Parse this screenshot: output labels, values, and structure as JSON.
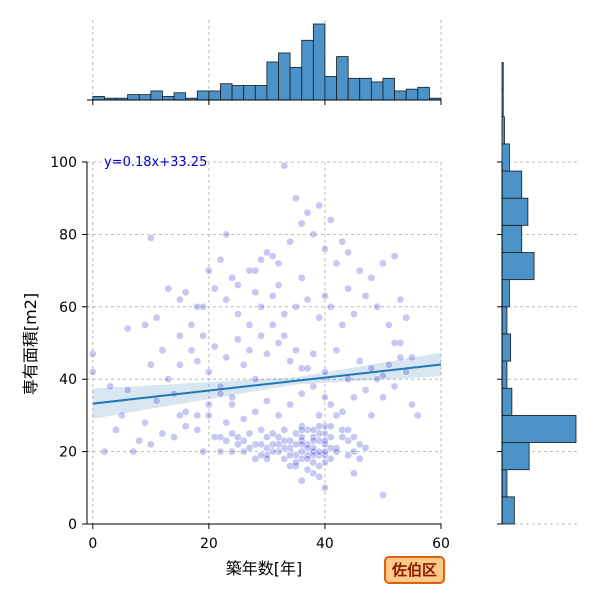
{
  "chart_data": {
    "type": "scatter",
    "title": "",
    "xlabel": "築年数[年]",
    "ylabel": "専有面積[m2]",
    "xlim": [
      -1,
      60
    ],
    "ylim": [
      0,
      100
    ],
    "x_ticks": [
      0,
      20,
      40,
      60
    ],
    "y_ticks": [
      0,
      20,
      40,
      60,
      80,
      100
    ],
    "grid": true,
    "regression": {
      "slope": 0.18,
      "intercept": 33.25,
      "label": "y=0.18x+33.25",
      "color": "#1f77b4"
    },
    "point_color": "#0000cc",
    "hist_color": "#4b93c8",
    "top_histogram": {
      "bin_start": 0,
      "bin_width": 2,
      "counts": [
        2,
        1,
        1,
        3,
        3,
        5,
        2,
        4,
        1,
        5,
        5,
        9,
        8,
        8,
        8,
        21,
        26,
        18,
        33,
        42,
        13,
        24,
        12,
        12,
        10,
        12,
        5,
        6,
        7,
        1,
        0
      ]
    },
    "right_histogram": {
      "bin_start": 0,
      "bin_width": 7.5,
      "counts": [
        10,
        4,
        22,
        60,
        8,
        4,
        7,
        4,
        6,
        26,
        16,
        21,
        16,
        6,
        2,
        1,
        1,
        0
      ]
    },
    "points": [
      [
        38,
        20
      ],
      [
        36,
        18
      ],
      [
        40,
        22
      ],
      [
        35,
        25
      ],
      [
        37,
        15
      ],
      [
        39,
        19
      ],
      [
        34,
        21
      ],
      [
        41,
        18
      ],
      [
        38,
        24
      ],
      [
        33,
        23
      ],
      [
        36,
        27
      ],
      [
        39,
        16
      ],
      [
        37,
        22
      ],
      [
        40,
        25
      ],
      [
        35,
        19
      ],
      [
        42,
        21
      ],
      [
        32,
        20
      ],
      [
        38,
        17
      ],
      [
        36,
        23
      ],
      [
        40,
        19
      ],
      [
        34,
        16
      ],
      [
        37,
        26
      ],
      [
        39,
        23
      ],
      [
        41,
        24
      ],
      [
        35,
        22
      ],
      [
        38,
        21
      ],
      [
        36,
        20
      ],
      [
        33,
        18
      ],
      [
        40,
        17
      ],
      [
        37,
        19
      ],
      [
        30,
        24
      ],
      [
        31,
        20
      ],
      [
        29,
        26
      ],
      [
        32,
        22
      ],
      [
        28,
        18
      ],
      [
        27,
        25
      ],
      [
        30,
        21
      ],
      [
        26,
        20
      ],
      [
        45,
        20
      ],
      [
        44,
        23
      ],
      [
        46,
        18
      ],
      [
        43,
        26
      ],
      [
        47,
        21
      ],
      [
        38,
        14
      ],
      [
        39,
        13
      ],
      [
        36,
        12
      ],
      [
        25,
        22
      ],
      [
        24,
        25
      ],
      [
        22,
        20
      ],
      [
        23,
        28
      ],
      [
        21,
        24
      ],
      [
        20,
        30
      ],
      [
        19,
        20
      ],
      [
        18,
        26
      ],
      [
        15,
        30
      ],
      [
        12,
        25
      ],
      [
        10,
        22
      ],
      [
        9,
        28
      ],
      [
        8,
        23
      ],
      [
        11,
        34
      ],
      [
        14,
        36
      ],
      [
        16,
        31
      ],
      [
        13,
        40
      ],
      [
        10,
        44
      ],
      [
        12,
        48
      ],
      [
        15,
        52
      ],
      [
        18,
        45
      ],
      [
        20,
        42
      ],
      [
        22,
        38
      ],
      [
        24,
        35
      ],
      [
        26,
        44
      ],
      [
        28,
        40
      ],
      [
        30,
        47
      ],
      [
        32,
        50
      ],
      [
        34,
        45
      ],
      [
        36,
        43
      ],
      [
        38,
        47
      ],
      [
        40,
        42
      ],
      [
        42,
        48
      ],
      [
        44,
        40
      ],
      [
        46,
        45
      ],
      [
        48,
        43
      ],
      [
        50,
        41
      ],
      [
        52,
        38
      ],
      [
        54,
        42
      ],
      [
        55,
        46
      ],
      [
        53,
        50
      ],
      [
        51,
        55
      ],
      [
        49,
        60
      ],
      [
        47,
        63
      ],
      [
        45,
        58
      ],
      [
        43,
        55
      ],
      [
        41,
        60
      ],
      [
        39,
        57
      ],
      [
        37,
        62
      ],
      [
        35,
        60
      ],
      [
        33,
        58
      ],
      [
        31,
        63
      ],
      [
        29,
        60
      ],
      [
        27,
        55
      ],
      [
        25,
        58
      ],
      [
        23,
        62
      ],
      [
        21,
        65
      ],
      [
        19,
        60
      ],
      [
        17,
        55
      ],
      [
        15,
        62
      ],
      [
        13,
        65
      ],
      [
        11,
        57
      ],
      [
        9,
        55
      ],
      [
        6,
        54
      ],
      [
        0,
        47
      ],
      [
        0,
        42
      ],
      [
        3,
        38
      ],
      [
        6,
        37
      ],
      [
        5,
        30
      ],
      [
        2,
        20
      ],
      [
        7,
        20
      ],
      [
        4,
        26
      ],
      [
        10,
        79
      ],
      [
        23,
        80
      ],
      [
        28,
        70
      ],
      [
        30,
        75
      ],
      [
        32,
        72
      ],
      [
        34,
        78
      ],
      [
        36,
        83
      ],
      [
        38,
        80
      ],
      [
        40,
        76
      ],
      [
        42,
        72
      ],
      [
        44,
        75
      ],
      [
        46,
        70
      ],
      [
        48,
        68
      ],
      [
        50,
        72
      ],
      [
        52,
        74
      ],
      [
        53,
        62
      ],
      [
        54,
        57
      ],
      [
        44,
        65
      ],
      [
        40,
        63
      ],
      [
        36,
        68
      ],
      [
        32,
        66
      ],
      [
        28,
        64
      ],
      [
        24,
        68
      ],
      [
        22,
        73
      ],
      [
        20,
        70
      ],
      [
        18,
        60
      ],
      [
        16,
        64
      ],
      [
        33,
        99
      ],
      [
        35,
        90
      ],
      [
        37,
        86
      ],
      [
        39,
        88
      ],
      [
        41,
        84
      ],
      [
        43,
        78
      ],
      [
        31,
        74
      ],
      [
        29,
        73
      ],
      [
        27,
        70
      ],
      [
        25,
        66
      ],
      [
        52,
        50
      ],
      [
        50,
        35
      ],
      [
        48,
        30
      ],
      [
        56,
        30
      ],
      [
        55,
        33
      ],
      [
        50,
        8
      ],
      [
        45,
        14
      ],
      [
        40,
        10
      ],
      [
        35,
        16
      ],
      [
        30,
        18
      ],
      [
        42,
        30
      ],
      [
        40,
        35
      ],
      [
        38,
        38
      ],
      [
        36,
        36
      ],
      [
        34,
        33
      ],
      [
        32,
        30
      ],
      [
        30,
        34
      ],
      [
        28,
        31
      ],
      [
        26,
        29
      ],
      [
        24,
        33
      ],
      [
        22,
        36
      ],
      [
        20,
        33
      ],
      [
        18,
        30
      ],
      [
        16,
        27
      ],
      [
        14,
        24
      ],
      [
        39,
        30
      ],
      [
        41,
        33
      ],
      [
        43,
        31
      ],
      [
        45,
        35
      ],
      [
        47,
        37
      ],
      [
        49,
        40
      ],
      [
        51,
        44
      ],
      [
        53,
        46
      ],
      [
        37,
        43
      ],
      [
        35,
        48
      ],
      [
        33,
        52
      ],
      [
        31,
        55
      ],
      [
        29,
        52
      ],
      [
        27,
        48
      ],
      [
        25,
        51
      ],
      [
        23,
        46
      ],
      [
        21,
        49
      ],
      [
        19,
        52
      ],
      [
        17,
        48
      ],
      [
        15,
        44
      ],
      [
        39,
        20
      ],
      [
        37,
        21
      ],
      [
        38,
        23
      ],
      [
        40,
        20
      ],
      [
        36,
        24
      ],
      [
        34,
        19
      ],
      [
        39,
        25
      ],
      [
        41,
        21
      ],
      [
        35,
        17
      ],
      [
        33,
        21
      ],
      [
        37,
        18
      ],
      [
        38,
        19
      ],
      [
        40,
        23
      ],
      [
        36,
        22
      ],
      [
        42,
        20
      ],
      [
        34,
        23
      ],
      [
        31,
        22
      ],
      [
        30,
        19
      ],
      [
        29,
        22
      ],
      [
        43,
        24
      ],
      [
        38,
        26
      ],
      [
        36,
        26
      ],
      [
        40,
        27
      ],
      [
        33,
        26
      ],
      [
        32,
        24
      ],
      [
        31,
        25
      ],
      [
        39,
        27
      ],
      [
        41,
        27
      ],
      [
        44,
        19
      ],
      [
        46,
        22
      ],
      [
        29,
        19
      ],
      [
        28,
        22
      ],
      [
        27,
        21
      ],
      [
        26,
        23
      ],
      [
        25,
        24
      ],
      [
        24,
        20
      ],
      [
        23,
        23
      ],
      [
        22,
        24
      ],
      [
        44,
        26
      ],
      [
        45,
        24
      ]
    ]
  },
  "badge": {
    "label": "佐伯区"
  }
}
